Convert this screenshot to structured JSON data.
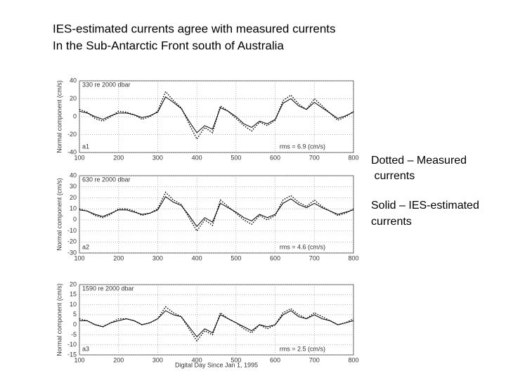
{
  "title_lines": [
    "IES-estimated currents agree with measured currents",
    "In the Sub-Antarctic Front south of Australia"
  ],
  "notes": [
    "Dotted – Measured",
    " currents",
    "Solid – IES-estimated",
    "currents"
  ],
  "chart_data": [
    {
      "type": "line",
      "ylabel": "Normal component (cm/s)",
      "annotations": {
        "depth": "330 re 2000 dbar",
        "panel": "a1",
        "rms": "rms = 6.9 (cm/s)"
      },
      "x": [
        100,
        120,
        140,
        160,
        180,
        200,
        220,
        240,
        260,
        280,
        300,
        320,
        340,
        360,
        380,
        400,
        420,
        440,
        460,
        480,
        500,
        520,
        540,
        560,
        580,
        600,
        620,
        640,
        660,
        680,
        700,
        720,
        740,
        760,
        780,
        800
      ],
      "series": [
        {
          "color": "#000000",
          "dashed": true,
          "values": [
            8,
            5,
            -2,
            -5,
            0,
            6,
            5,
            2,
            -3,
            0,
            6,
            28,
            18,
            10,
            -8,
            -25,
            -12,
            -18,
            12,
            6,
            -2,
            -10,
            -16,
            -6,
            -10,
            -4,
            18,
            24,
            14,
            8,
            20,
            12,
            4,
            -4,
            0,
            6
          ]
        },
        {
          "color": "#000000",
          "dashed": false,
          "values": [
            6,
            4,
            0,
            -3,
            1,
            4,
            4,
            2,
            -1,
            1,
            5,
            22,
            16,
            9,
            -5,
            -18,
            -10,
            -14,
            10,
            6,
            0,
            -8,
            -12,
            -5,
            -8,
            -3,
            15,
            20,
            12,
            8,
            16,
            10,
            4,
            -2,
            1,
            5
          ]
        }
      ],
      "xlim": [
        100,
        800
      ],
      "xticks": [
        100,
        200,
        300,
        400,
        500,
        600,
        700,
        800
      ],
      "ylim": [
        -40,
        40
      ],
      "yticks": [
        -40,
        -20,
        0,
        20,
        40
      ],
      "grid": true
    },
    {
      "type": "line",
      "ylabel": "Normal component (cm/s)",
      "annotations": {
        "depth": "630 re 2000 dbar",
        "panel": "a2",
        "rms": "rms = 4.6 (cm/s)"
      },
      "x": [
        100,
        120,
        140,
        160,
        180,
        200,
        220,
        240,
        260,
        280,
        300,
        320,
        340,
        360,
        380,
        400,
        420,
        440,
        460,
        480,
        500,
        520,
        540,
        560,
        580,
        600,
        620,
        640,
        660,
        680,
        700,
        720,
        740,
        760,
        780,
        800
      ],
      "series": [
        {
          "color": "#000000",
          "dashed": true,
          "values": [
            10,
            8,
            4,
            2,
            5,
            10,
            10,
            8,
            4,
            6,
            10,
            25,
            18,
            14,
            2,
            -10,
            0,
            -5,
            18,
            12,
            6,
            0,
            -4,
            4,
            0,
            4,
            18,
            22,
            16,
            12,
            18,
            12,
            8,
            4,
            6,
            10
          ]
        },
        {
          "color": "#000000",
          "dashed": false,
          "values": [
            9,
            8,
            5,
            3,
            6,
            9,
            9,
            7,
            5,
            6,
            9,
            21,
            16,
            13,
            4,
            -6,
            2,
            -2,
            15,
            11,
            7,
            2,
            -1,
            5,
            2,
            5,
            15,
            19,
            14,
            11,
            15,
            11,
            8,
            5,
            7,
            9
          ]
        }
      ],
      "xlim": [
        100,
        800
      ],
      "xticks": [
        100,
        200,
        300,
        400,
        500,
        600,
        700,
        800
      ],
      "ylim": [
        -30,
        40
      ],
      "yticks": [
        -30,
        -20,
        -10,
        0,
        10,
        20,
        30,
        40
      ],
      "grid": true
    },
    {
      "type": "line",
      "ylabel": "Normal component (cm/s)",
      "xlabel": "Digital Day Since Jan 1, 1995",
      "annotations": {
        "depth": "1590 re 2000 dbar",
        "panel": "a3",
        "rms": "rms = 2.5 (cm/s)"
      },
      "x": [
        100,
        120,
        140,
        160,
        180,
        200,
        220,
        240,
        260,
        280,
        300,
        320,
        340,
        360,
        380,
        400,
        420,
        440,
        460,
        480,
        500,
        520,
        540,
        560,
        580,
        600,
        620,
        640,
        660,
        680,
        700,
        720,
        740,
        760,
        780,
        800
      ],
      "series": [
        {
          "color": "#000000",
          "dashed": true,
          "values": [
            3,
            2,
            0,
            -1,
            1,
            3,
            3,
            2,
            0,
            1,
            3,
            9,
            6,
            4,
            -2,
            -8,
            -3,
            -5,
            6,
            3,
            1,
            -2,
            -4,
            0,
            -2,
            0,
            6,
            8,
            5,
            3,
            6,
            4,
            2,
            0,
            1,
            3
          ]
        },
        {
          "color": "#000000",
          "dashed": false,
          "values": [
            2,
            2,
            0,
            -1,
            1,
            2,
            3,
            2,
            0,
            1,
            3,
            7,
            5,
            4,
            -1,
            -6,
            -2,
            -4,
            5,
            3,
            1,
            -1,
            -3,
            0,
            -1,
            0,
            5,
            7,
            4,
            3,
            5,
            3,
            2,
            0,
            1,
            2
          ]
        }
      ],
      "xlim": [
        100,
        800
      ],
      "xticks": [
        100,
        200,
        300,
        400,
        500,
        600,
        700,
        800
      ],
      "ylim": [
        -15,
        20
      ],
      "yticks": [
        -15,
        -10,
        -5,
        0,
        5,
        10,
        15,
        20
      ],
      "grid": true
    }
  ]
}
